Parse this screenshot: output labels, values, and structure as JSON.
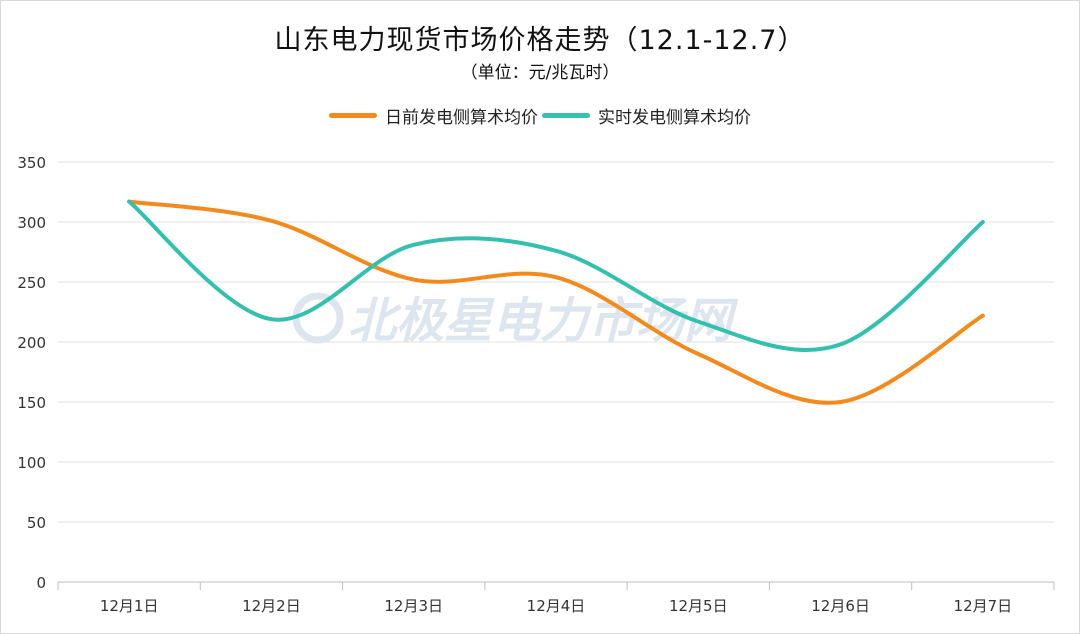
{
  "chart_data": {
    "type": "line",
    "title": "山东电力现货市场价格走势（12.1-12.7）",
    "subtitle": "（单位：元/兆瓦时）",
    "categories": [
      "12月1日",
      "12月2日",
      "12月3日",
      "12月4日",
      "12月5日",
      "12月6日",
      "12月7日"
    ],
    "series": [
      {
        "name": "日前发电侧算术均价",
        "color": "#F28A1E",
        "values": [
          317,
          301,
          252,
          254,
          190,
          150,
          222
        ]
      },
      {
        "name": "实时发电侧算术均价",
        "color": "#35BFAE",
        "values": [
          317,
          219,
          281,
          276,
          217,
          198,
          300
        ]
      }
    ],
    "ylim": [
      0,
      350
    ],
    "yticks": [
      0,
      50,
      100,
      150,
      200,
      250,
      300,
      350
    ],
    "grid": true,
    "legend_position": "top-center",
    "smooth": true
  },
  "watermark": {
    "text": "北极星电力市场网",
    "color": "#dde6ee"
  }
}
